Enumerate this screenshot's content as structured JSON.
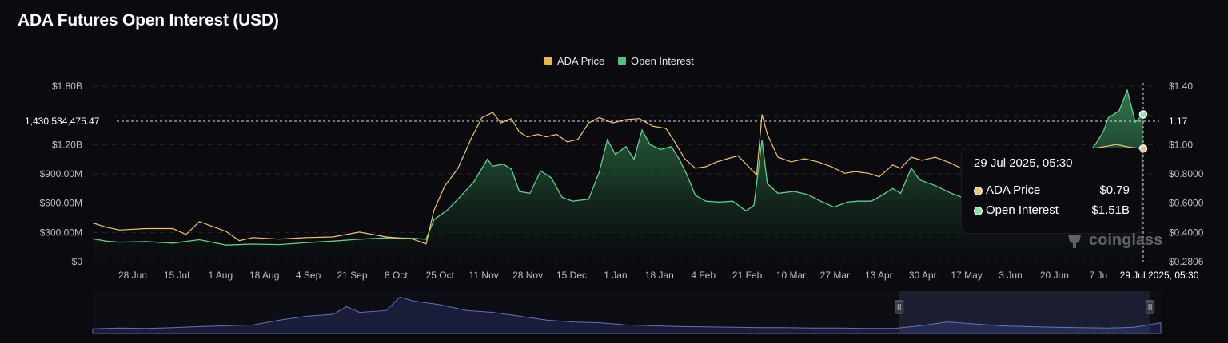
{
  "title": "ADA Futures Open Interest (USD)",
  "colors": {
    "price": "#f0c56a",
    "oi": "#5fd08a",
    "background": "#0b0b0f",
    "navigator": "#6570b8"
  },
  "legend": [
    {
      "label": "ADA Price",
      "color": "#e9b84e"
    },
    {
      "label": "Open Interest",
      "color": "#4fc57c"
    }
  ],
  "crosshair": {
    "left_value": "1,430,534,475.47",
    "right_value": "1.17",
    "x_label": "29 Jul 2025, 05:30"
  },
  "tooltip": {
    "title": "29 Jul 2025, 05:30",
    "rows": [
      {
        "name": "ADA Price",
        "value": "$0.79",
        "color": "#e9c77a"
      },
      {
        "name": "Open Interest",
        "value": "$1.51B",
        "color": "#8fe0a9"
      }
    ]
  },
  "watermark": "coinglass",
  "watermark_icon": "coinglass-logo-icon",
  "chart_data": {
    "type": "area",
    "title": "ADA Futures Open Interest (USD)",
    "x_tick_labels": [
      "28 Jun",
      "15 Jul",
      "1 Aug",
      "18 Aug",
      "4 Sep",
      "21 Sep",
      "8 Oct",
      "25 Oct",
      "11 Nov",
      "28 Nov",
      "15 Dec",
      "1 Jan",
      "18 Jan",
      "4 Feb",
      "21 Feb",
      "10 Mar",
      "27 Mar",
      "13 Apr",
      "30 Apr",
      "17 May",
      "3 Jun",
      "20 Jun",
      "7 Ju"
    ],
    "y_left": {
      "ticks": [
        "$0",
        "$300.00M",
        "$600.00M",
        "$900.00M",
        "$1.20B",
        "$1.50B",
        "$1.80B"
      ],
      "range": [
        0,
        1800000000
      ]
    },
    "y_right": {
      "ticks": [
        "$0.2806",
        "$0.4000",
        "$0.6000",
        "$0.8000",
        "$1.00",
        "$1.20",
        "$1.40"
      ],
      "range": [
        0.2806,
        1.4
      ],
      "scale": "log"
    },
    "x_range_days": [
      0,
      400
    ],
    "series": [
      {
        "name": "Open Interest",
        "axis": "left",
        "unit": "USD",
        "points": [
          [
            0,
            235000000
          ],
          [
            5,
            210000000
          ],
          [
            10,
            200000000
          ],
          [
            20,
            205000000
          ],
          [
            30,
            190000000
          ],
          [
            40,
            225000000
          ],
          [
            50,
            170000000
          ],
          [
            60,
            180000000
          ],
          [
            70,
            175000000
          ],
          [
            80,
            195000000
          ],
          [
            90,
            210000000
          ],
          [
            100,
            230000000
          ],
          [
            110,
            245000000
          ],
          [
            120,
            240000000
          ],
          [
            125,
            230000000
          ],
          [
            128,
            430000000
          ],
          [
            133,
            530000000
          ],
          [
            138,
            670000000
          ],
          [
            143,
            820000000
          ],
          [
            148,
            1050000000
          ],
          [
            150,
            980000000
          ],
          [
            154,
            1000000000
          ],
          [
            157,
            950000000
          ],
          [
            160,
            720000000
          ],
          [
            164,
            700000000
          ],
          [
            168,
            930000000
          ],
          [
            172,
            860000000
          ],
          [
            176,
            660000000
          ],
          [
            180,
            620000000
          ],
          [
            186,
            640000000
          ],
          [
            190,
            920000000
          ],
          [
            193,
            1250000000
          ],
          [
            196,
            1100000000
          ],
          [
            200,
            1180000000
          ],
          [
            203,
            1050000000
          ],
          [
            206,
            1350000000
          ],
          [
            209,
            1200000000
          ],
          [
            213,
            1150000000
          ],
          [
            217,
            1180000000
          ],
          [
            220,
            1050000000
          ],
          [
            223,
            880000000
          ],
          [
            226,
            680000000
          ],
          [
            230,
            620000000
          ],
          [
            235,
            610000000
          ],
          [
            240,
            620000000
          ],
          [
            245,
            520000000
          ],
          [
            248,
            580000000
          ],
          [
            251,
            1250000000
          ],
          [
            253,
            800000000
          ],
          [
            257,
            700000000
          ],
          [
            263,
            720000000
          ],
          [
            268,
            690000000
          ],
          [
            273,
            620000000
          ],
          [
            278,
            560000000
          ],
          [
            283,
            610000000
          ],
          [
            287,
            620000000
          ],
          [
            292,
            620000000
          ],
          [
            296,
            680000000
          ],
          [
            300,
            750000000
          ],
          [
            303,
            700000000
          ],
          [
            307,
            960000000
          ],
          [
            310,
            840000000
          ],
          [
            316,
            780000000
          ],
          [
            322,
            700000000
          ],
          [
            327,
            650000000
          ],
          [
            332,
            700000000
          ],
          [
            336,
            650000000
          ],
          [
            340,
            1000000000
          ],
          [
            346,
            800000000
          ],
          [
            350,
            880000000
          ],
          [
            355,
            960000000
          ],
          [
            361,
            1030000000
          ],
          [
            366,
            1060000000
          ],
          [
            370,
            1150000000
          ],
          [
            373,
            1100000000
          ],
          [
            376,
            1200000000
          ],
          [
            379,
            1330000000
          ],
          [
            381,
            1480000000
          ],
          [
            383,
            1510000000
          ],
          [
            385,
            1550000000
          ],
          [
            388,
            1760000000
          ],
          [
            391,
            1430000000
          ],
          [
            394,
            1510000000
          ]
        ]
      },
      {
        "name": "ADA Price",
        "axis": "right",
        "unit": "USD",
        "points": [
          [
            0,
            0.4
          ],
          [
            5,
            0.385
          ],
          [
            10,
            0.375
          ],
          [
            20,
            0.38
          ],
          [
            30,
            0.38
          ],
          [
            35,
            0.36
          ],
          [
            40,
            0.405
          ],
          [
            50,
            0.37
          ],
          [
            55,
            0.34
          ],
          [
            60,
            0.35
          ],
          [
            70,
            0.345
          ],
          [
            80,
            0.35
          ],
          [
            90,
            0.352
          ],
          [
            100,
            0.368
          ],
          [
            110,
            0.352
          ],
          [
            120,
            0.345
          ],
          [
            125,
            0.33
          ],
          [
            128,
            0.45
          ],
          [
            132,
            0.56
          ],
          [
            137,
            0.66
          ],
          [
            142,
            0.87
          ],
          [
            146,
            1.05
          ],
          [
            150,
            1.1
          ],
          [
            153,
            1.0
          ],
          [
            157,
            1.04
          ],
          [
            160,
            0.92
          ],
          [
            163,
            0.88
          ],
          [
            167,
            0.9
          ],
          [
            170,
            0.88
          ],
          [
            174,
            0.9
          ],
          [
            178,
            0.84
          ],
          [
            182,
            0.86
          ],
          [
            186,
            1.0
          ],
          [
            190,
            1.05
          ],
          [
            195,
            1.0
          ],
          [
            200,
            1.03
          ],
          [
            205,
            1.04
          ],
          [
            210,
            0.97
          ],
          [
            215,
            0.95
          ],
          [
            218,
            0.85
          ],
          [
            222,
            0.72
          ],
          [
            226,
            0.66
          ],
          [
            230,
            0.67
          ],
          [
            234,
            0.7
          ],
          [
            238,
            0.72
          ],
          [
            242,
            0.74
          ],
          [
            246,
            0.67
          ],
          [
            249,
            0.62
          ],
          [
            251,
            1.08
          ],
          [
            253,
            0.9
          ],
          [
            257,
            0.73
          ],
          [
            262,
            0.7
          ],
          [
            267,
            0.72
          ],
          [
            272,
            0.7
          ],
          [
            277,
            0.67
          ],
          [
            282,
            0.63
          ],
          [
            286,
            0.64
          ],
          [
            291,
            0.63
          ],
          [
            295,
            0.61
          ],
          [
            300,
            0.68
          ],
          [
            303,
            0.66
          ],
          [
            307,
            0.73
          ],
          [
            311,
            0.71
          ],
          [
            316,
            0.73
          ],
          [
            322,
            0.69
          ],
          [
            327,
            0.65
          ],
          [
            332,
            0.67
          ],
          [
            337,
            0.63
          ],
          [
            342,
            0.7
          ],
          [
            348,
            0.67
          ],
          [
            354,
            0.73
          ],
          [
            360,
            0.76
          ],
          [
            366,
            0.77
          ],
          [
            372,
            0.78
          ],
          [
            378,
            0.8
          ],
          [
            384,
            0.82
          ],
          [
            389,
            0.8
          ],
          [
            394,
            0.79
          ]
        ]
      }
    ],
    "navigator": {
      "series": [
        [
          0,
          0.12
        ],
        [
          10,
          0.14
        ],
        [
          20,
          0.13
        ],
        [
          30,
          0.15
        ],
        [
          40,
          0.18
        ],
        [
          50,
          0.2
        ],
        [
          60,
          0.22
        ],
        [
          70,
          0.35
        ],
        [
          80,
          0.45
        ],
        [
          90,
          0.5
        ],
        [
          95,
          0.7
        ],
        [
          100,
          0.55
        ],
        [
          110,
          0.6
        ],
        [
          115,
          0.95
        ],
        [
          120,
          0.85
        ],
        [
          130,
          0.75
        ],
        [
          140,
          0.6
        ],
        [
          150,
          0.55
        ],
        [
          160,
          0.45
        ],
        [
          170,
          0.35
        ],
        [
          180,
          0.3
        ],
        [
          190,
          0.28
        ],
        [
          200,
          0.22
        ],
        [
          210,
          0.2
        ],
        [
          220,
          0.18
        ],
        [
          230,
          0.17
        ],
        [
          240,
          0.16
        ],
        [
          250,
          0.15
        ],
        [
          260,
          0.15
        ],
        [
          270,
          0.14
        ],
        [
          280,
          0.14
        ],
        [
          290,
          0.13
        ],
        [
          300,
          0.13
        ],
        [
          310,
          0.2
        ],
        [
          320,
          0.3
        ],
        [
          330,
          0.25
        ],
        [
          340,
          0.2
        ],
        [
          350,
          0.18
        ],
        [
          360,
          0.16
        ],
        [
          370,
          0.15
        ],
        [
          380,
          0.14
        ],
        [
          390,
          0.16
        ],
        [
          400,
          0.28
        ]
      ],
      "selection": [
        0.755,
        0.99
      ]
    }
  }
}
